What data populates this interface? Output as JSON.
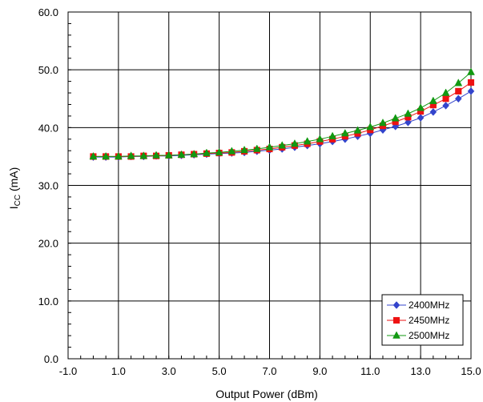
{
  "chart_data": {
    "type": "line",
    "title": "",
    "xlabel": "Output Power (dBm)",
    "ylabel": {
      "main": "I",
      "sub": "CC",
      "unit": " (mA)"
    },
    "xlim": [
      -1,
      15
    ],
    "ylim": [
      0,
      60
    ],
    "x_ticks": [
      -1,
      1,
      3,
      5,
      7,
      9,
      11,
      13,
      15
    ],
    "x_tick_labels": [
      "-1.0",
      "1.0",
      "3.0",
      "5.0",
      "7.0",
      "9.0",
      "11.0",
      "13.0",
      "15.0"
    ],
    "y_ticks": [
      0,
      10,
      20,
      30,
      40,
      50,
      60
    ],
    "y_tick_labels": [
      "0.0",
      "10.0",
      "20.0",
      "30.0",
      "40.0",
      "50.0",
      "60.0"
    ],
    "grid": true,
    "legend_position": "bottom-right",
    "x": [
      0,
      0.5,
      1,
      1.5,
      2,
      2.5,
      3,
      3.5,
      4,
      4.5,
      5,
      5.5,
      6,
      6.5,
      7,
      7.5,
      8,
      8.5,
      9,
      9.5,
      10,
      10.5,
      11,
      11.5,
      12,
      12.5,
      13,
      13.5,
      14,
      14.5,
      15
    ],
    "series": [
      {
        "name": "2400MHz",
        "color": "#3344cc",
        "marker": "diamond",
        "values": [
          34.9,
          34.9,
          34.9,
          35.0,
          35.0,
          35.1,
          35.1,
          35.2,
          35.3,
          35.4,
          35.5,
          35.6,
          35.7,
          35.9,
          36.1,
          36.3,
          36.6,
          36.9,
          37.2,
          37.6,
          38.0,
          38.5,
          39.0,
          39.6,
          40.2,
          40.9,
          41.7,
          42.7,
          43.8,
          45.0,
          46.3
        ]
      },
      {
        "name": "2450MHz",
        "color": "#ee1111",
        "marker": "square",
        "values": [
          35.0,
          35.0,
          35.0,
          35.0,
          35.1,
          35.1,
          35.2,
          35.3,
          35.4,
          35.5,
          35.6,
          35.7,
          35.9,
          36.1,
          36.3,
          36.6,
          36.9,
          37.2,
          37.6,
          38.0,
          38.5,
          39.0,
          39.6,
          40.3,
          41.0,
          41.8,
          42.8,
          43.9,
          45.0,
          46.3,
          47.8
        ]
      },
      {
        "name": "2500MHz",
        "color": "#119911",
        "marker": "triangle",
        "values": [
          35.0,
          35.0,
          35.0,
          35.1,
          35.1,
          35.2,
          35.2,
          35.3,
          35.4,
          35.6,
          35.7,
          35.9,
          36.1,
          36.3,
          36.6,
          36.9,
          37.2,
          37.6,
          38.0,
          38.5,
          39.0,
          39.5,
          40.1,
          40.8,
          41.6,
          42.4,
          43.4,
          44.6,
          46.0,
          47.7,
          49.6
        ]
      }
    ]
  }
}
